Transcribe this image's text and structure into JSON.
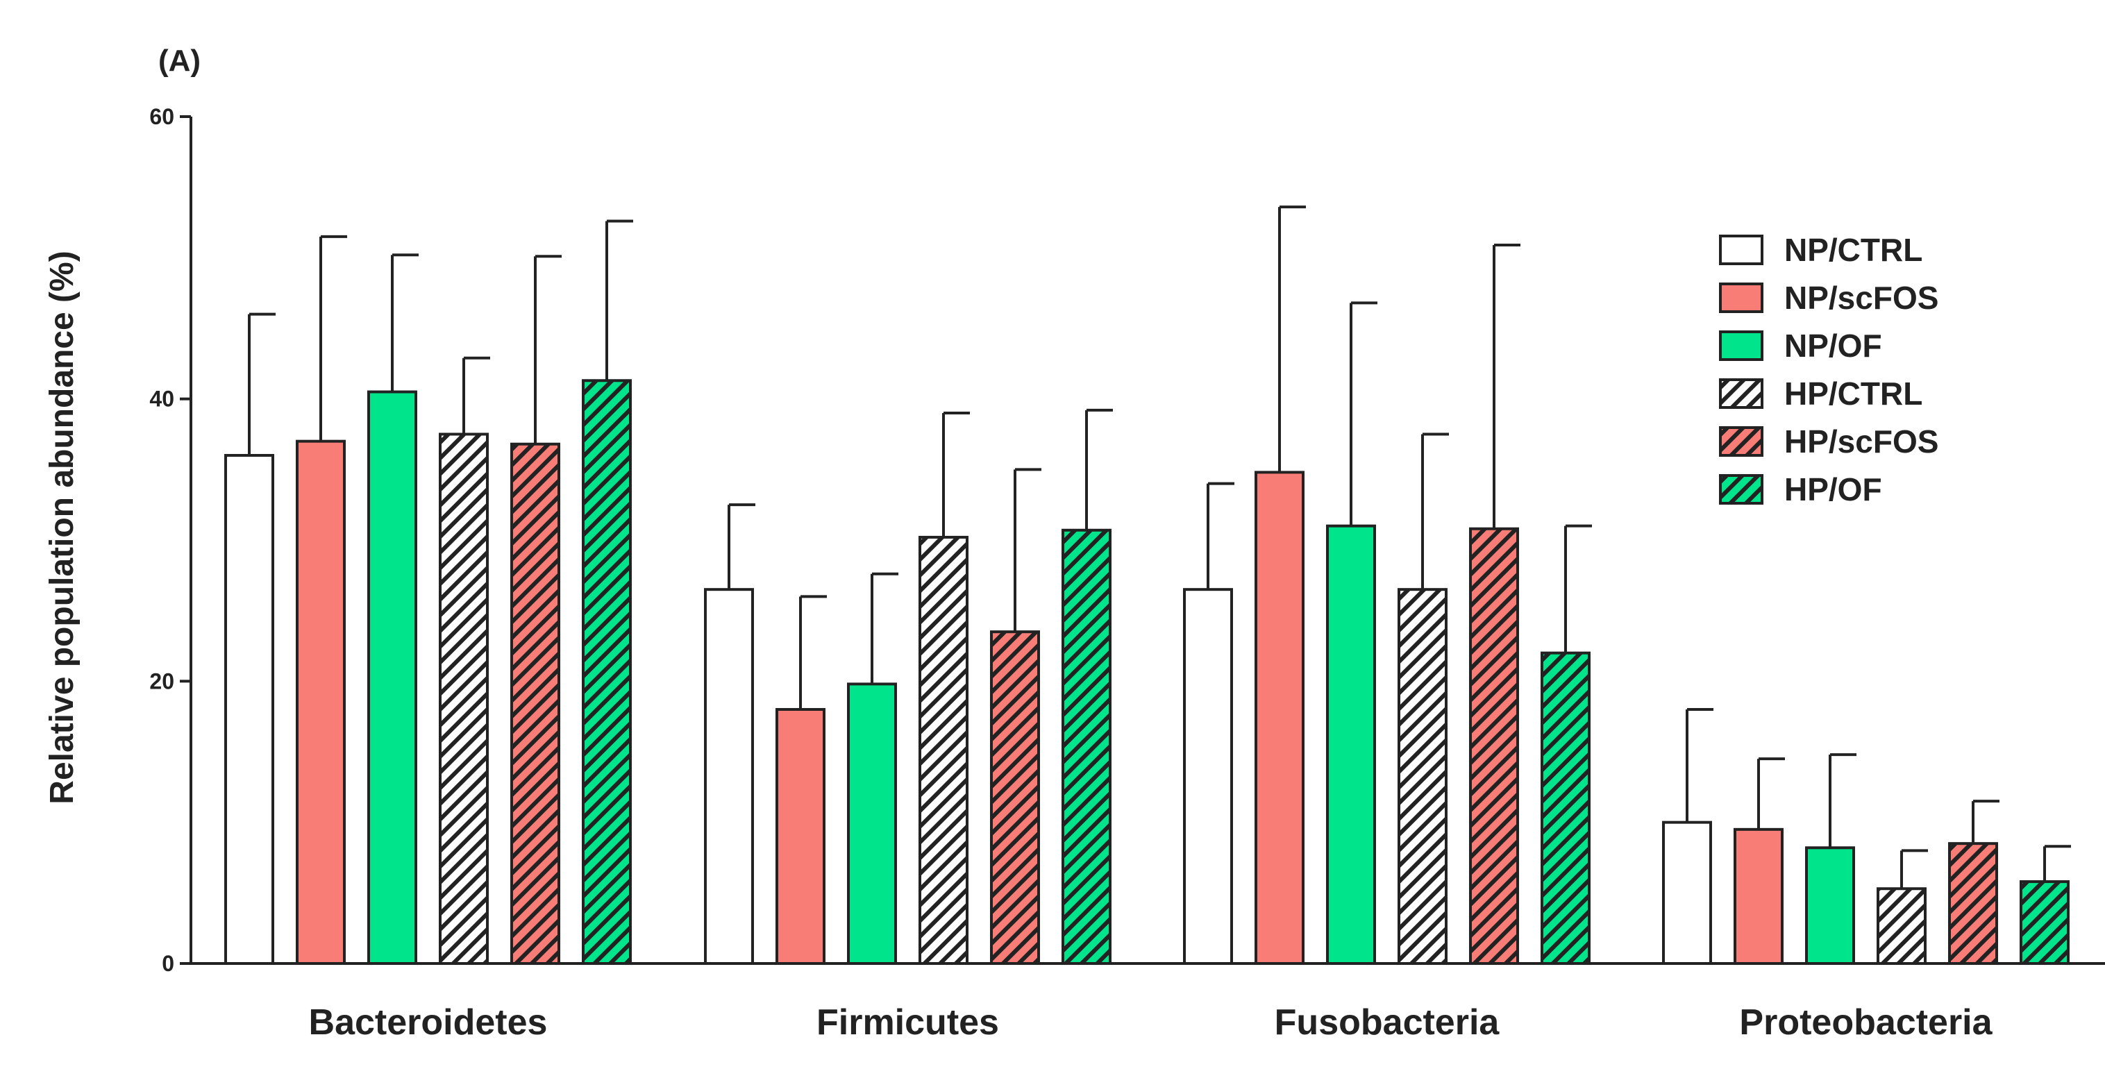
{
  "chart_data": {
    "type": "bar",
    "panel_label": "(A)",
    "title": "",
    "xlabel": "",
    "ylabel": "Relative population abundance (%)",
    "ylim": [
      0,
      60
    ],
    "yticks": [
      "0",
      "20",
      "40",
      "60"
    ],
    "grid": false,
    "legend_position": "top-right",
    "categories": [
      "Bacteroidetes",
      "Firmicutes",
      "Fusobacteria",
      "Proteobacteria"
    ],
    "series": [
      {
        "name": "NP/CTRL",
        "color": "#ffffff",
        "hatched": false,
        "values": [
          36.0,
          26.5,
          26.5,
          10.0
        ],
        "error": [
          10.0,
          6.0,
          7.5,
          8.0
        ]
      },
      {
        "name": "NP/scFOS",
        "color": "#f87d77",
        "hatched": false,
        "values": [
          37.0,
          18.0,
          34.8,
          9.5
        ],
        "error": [
          14.5,
          8.0,
          18.8,
          5.0
        ]
      },
      {
        "name": "NP/OF",
        "color": "#00e58c",
        "hatched": false,
        "values": [
          40.5,
          19.8,
          31.0,
          8.2
        ],
        "error": [
          9.7,
          7.8,
          15.8,
          6.6
        ]
      },
      {
        "name": "HP/CTRL",
        "color": "#ffffff",
        "hatched": true,
        "values": [
          37.5,
          30.2,
          26.5,
          5.3
        ],
        "error": [
          5.4,
          8.8,
          11.0,
          2.7
        ]
      },
      {
        "name": "HP/scFOS",
        "color": "#f87d77",
        "hatched": true,
        "values": [
          36.8,
          23.5,
          30.8,
          8.5
        ],
        "error": [
          13.3,
          11.5,
          20.1,
          3.0
        ]
      },
      {
        "name": "HP/OF",
        "color": "#00e58c",
        "hatched": true,
        "values": [
          41.3,
          30.7,
          22.0,
          5.8
        ],
        "error": [
          11.3,
          8.5,
          9.0,
          2.5
        ]
      }
    ]
  }
}
